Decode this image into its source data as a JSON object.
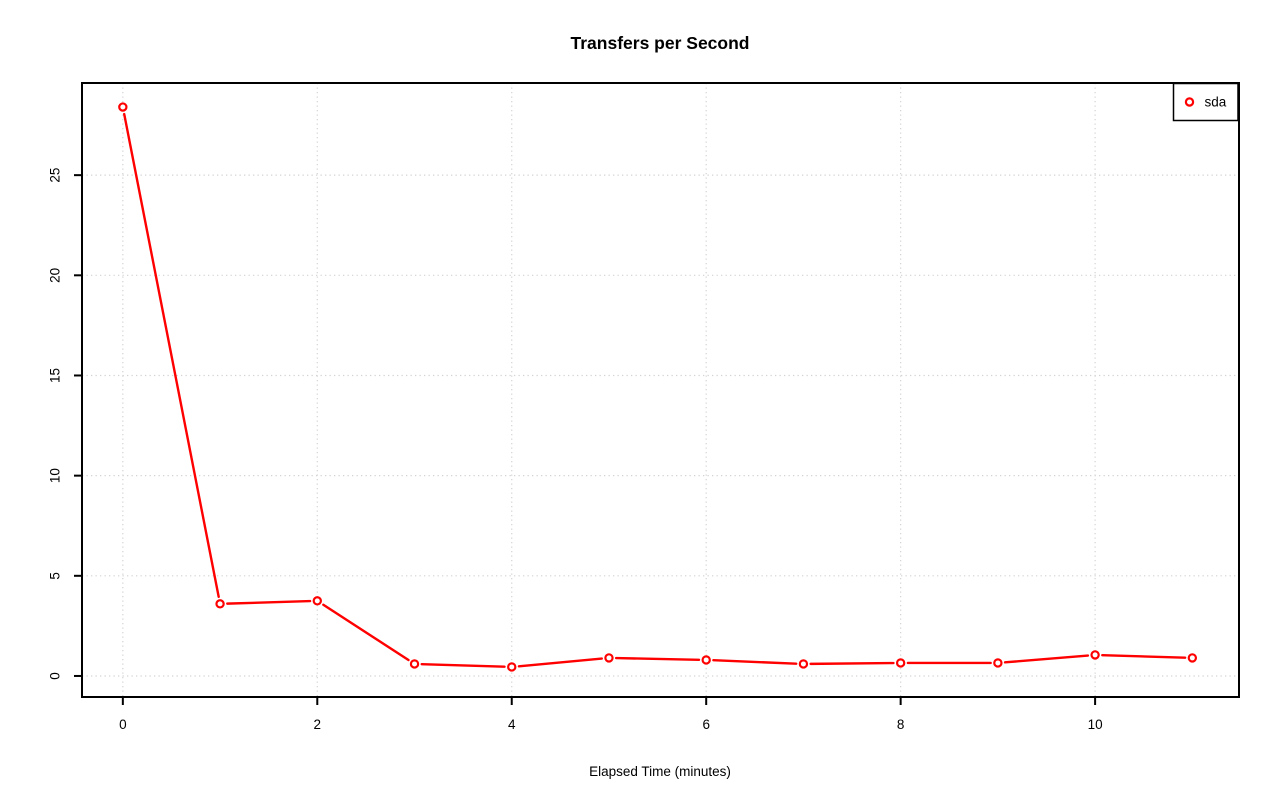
{
  "page": {
    "background": "#ffffff"
  },
  "chart_data": {
    "type": "line",
    "title": "Transfers per Second",
    "xlabel": "Elapsed Time (minutes)",
    "ylabel": "",
    "x": [
      0,
      1,
      2,
      3,
      4,
      5,
      6,
      7,
      8,
      9,
      10,
      11
    ],
    "series": [
      {
        "name": "sda",
        "color": "#ff0000",
        "marker": "open-circle",
        "line_style": "solid",
        "values": [
          28.4,
          3.6,
          3.75,
          0.6,
          0.45,
          0.9,
          0.8,
          0.6,
          0.65,
          0.65,
          1.05,
          0.9
        ]
      }
    ],
    "x_ticks": [
      0,
      2,
      4,
      6,
      8,
      10
    ],
    "y_ticks": [
      0,
      5,
      10,
      15,
      20,
      25
    ],
    "xlim": [
      -0.42,
      11.48
    ],
    "ylim": [
      -1.05,
      29.6
    ],
    "grid": true,
    "grid_color": "#d3d3d3",
    "grid_style": "dotted",
    "axis_color": "#000000",
    "legend": {
      "position": "top-right",
      "entries": [
        {
          "label": "sda",
          "color": "#ff0000",
          "marker": "open-circle"
        }
      ]
    }
  }
}
